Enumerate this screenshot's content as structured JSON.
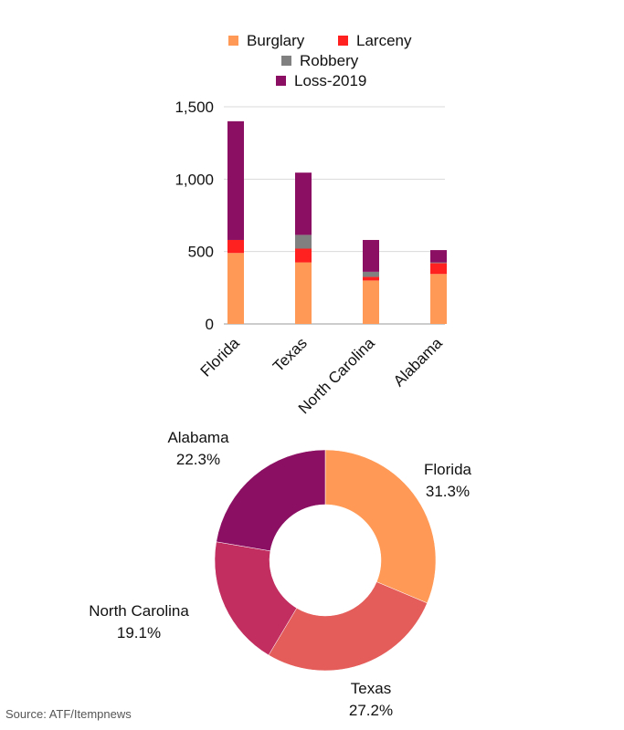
{
  "source": "Source: ATF/Itempnews",
  "chart_data": [
    {
      "type": "bar",
      "stacked": true,
      "categories": [
        "Florida",
        "Texas",
        "North Carolina",
        "Alabama"
      ],
      "series": [
        {
          "name": "Burglary",
          "color": "#FF9955",
          "values": [
            490,
            425,
            300,
            345
          ]
        },
        {
          "name": "Larceny",
          "color": "#FF2020",
          "values": [
            90,
            95,
            25,
            75
          ]
        },
        {
          "name": "Robbery",
          "color": "#808080",
          "values": [
            0,
            95,
            35,
            5
          ]
        },
        {
          "name": "Loss-2019",
          "color": "#8B0F62",
          "values": [
            820,
            430,
            220,
            85
          ]
        }
      ],
      "yticks": [
        "0",
        "500",
        "1,000",
        "1,500"
      ],
      "ytick_values": [
        0,
        500,
        1000,
        1500
      ],
      "ylim": [
        0,
        1500
      ],
      "grid": true,
      "legend_position": "top"
    },
    {
      "type": "pie",
      "donut": true,
      "labels": [
        "Florida",
        "Texas",
        "North Carolina",
        "Alabama"
      ],
      "percents": [
        "31.3%",
        "27.2%",
        "19.1%",
        "22.3%"
      ],
      "values": [
        31.3,
        27.2,
        19.1,
        22.3
      ],
      "colors": [
        "#FF9955",
        "#E45D5A",
        "#C12E5F",
        "#8B0F62"
      ]
    }
  ]
}
